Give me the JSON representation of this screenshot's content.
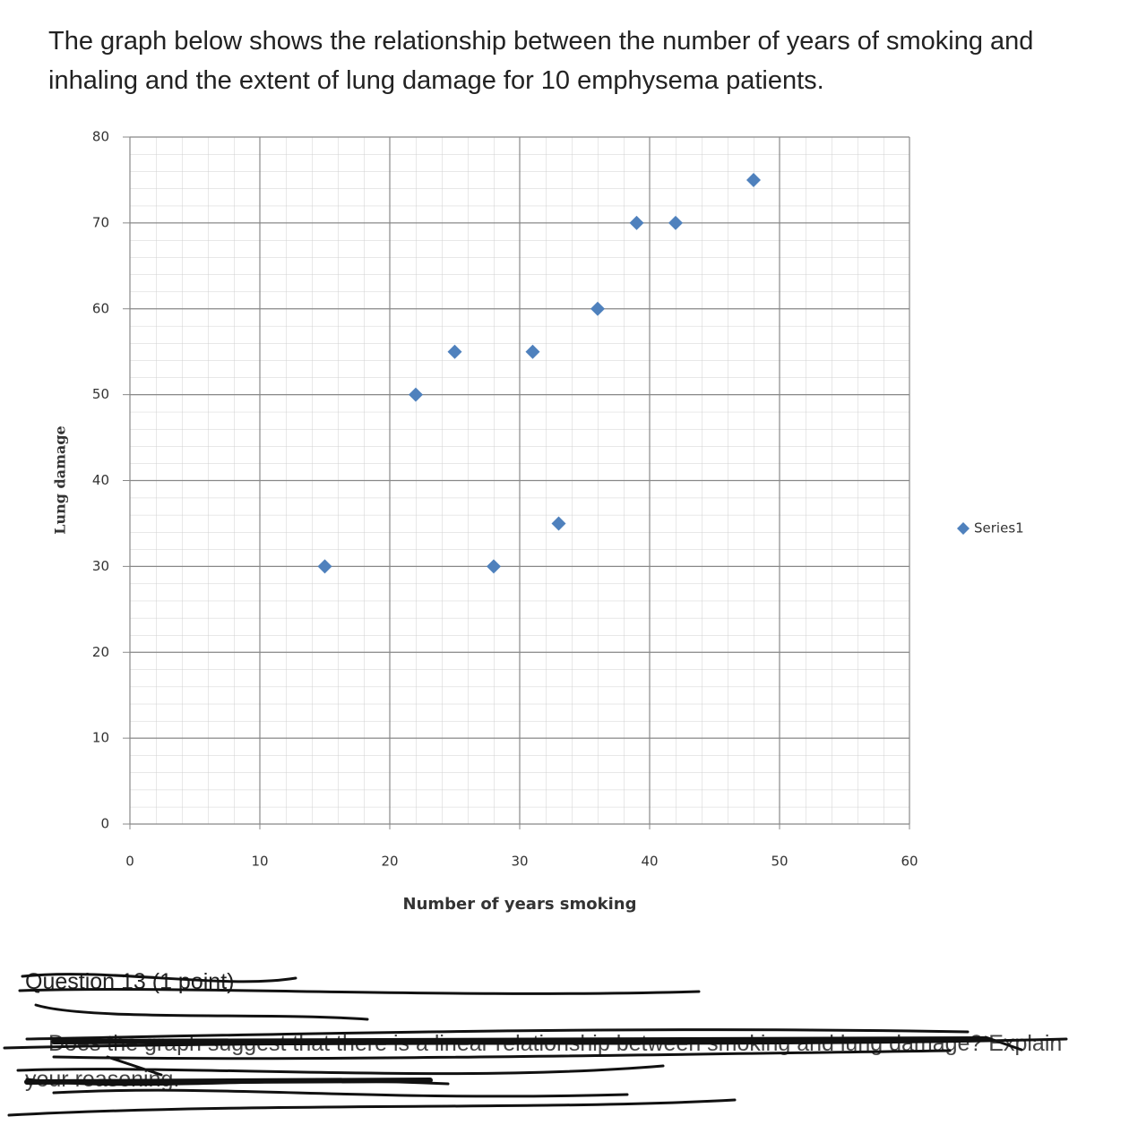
{
  "intro": "The graph below shows the relationship between the number of years of smoking and inhaling and the extent of lung damage for 10 emphysema patients.",
  "chart_data": {
    "type": "scatter",
    "x_label": "Number of years smoking",
    "y_label": "Lung damage",
    "series": [
      {
        "name": "Series1",
        "color": "#4f81bd",
        "x": [
          15,
          22,
          25,
          28,
          31,
          33,
          36,
          39,
          42,
          48
        ],
        "values": [
          30,
          50,
          55,
          30,
          55,
          35,
          60,
          70,
          70,
          75
        ]
      }
    ],
    "xlim": [
      0,
      60
    ],
    "xticks": [
      0,
      10,
      20,
      30,
      40,
      50,
      60
    ],
    "ylim": [
      0,
      80
    ],
    "yticks": [
      0,
      10,
      20,
      30,
      40,
      50,
      60,
      70,
      80
    ],
    "grid": true,
    "legend": "right"
  },
  "question": {
    "title": "Question 13 (1 point)",
    "text": "Does the graph suggest that there is a linear relationship between smoking and lung damage? Explain your reasoning."
  }
}
